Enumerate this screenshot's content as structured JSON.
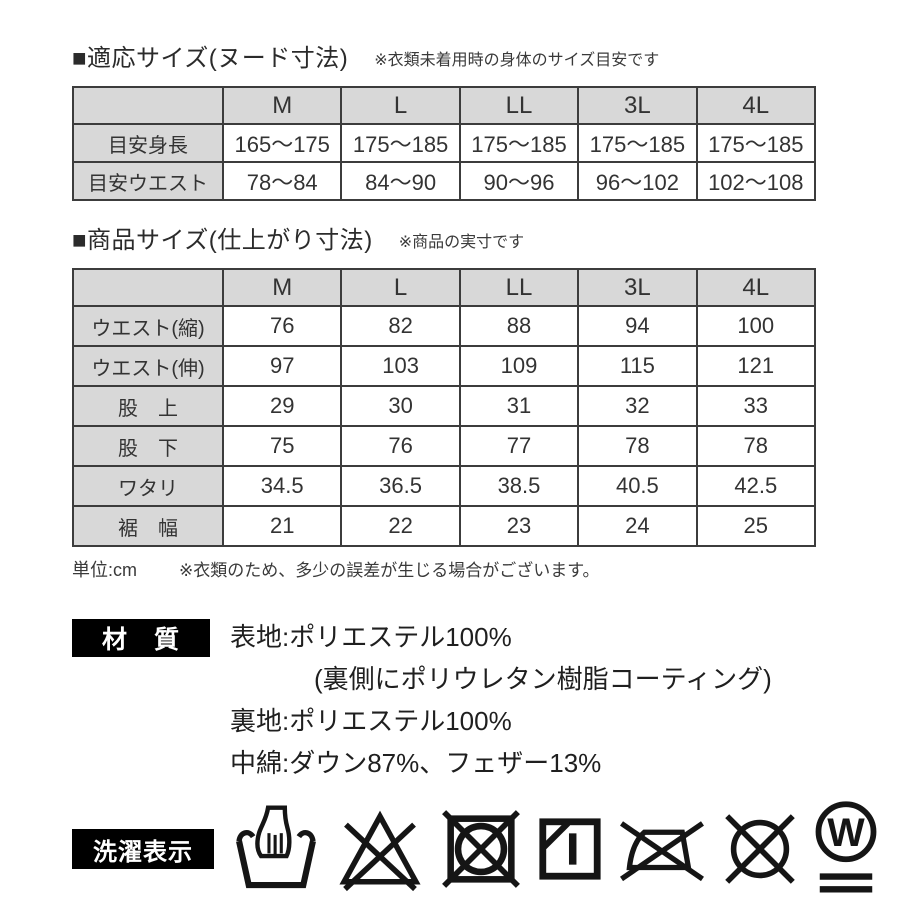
{
  "sections": {
    "nude_size": {
      "title": "■適応サイズ(ヌード寸法)",
      "note": "※衣類未着用時の身体のサイズ目安です",
      "table": {
        "columns": [
          "",
          "M",
          "L",
          "LL",
          "3L",
          "4L"
        ],
        "rows": [
          {
            "label": "目安身長",
            "values": [
              "165〜175",
              "175〜185",
              "175〜185",
              "175〜185",
              "175〜185"
            ]
          },
          {
            "label": "目安ウエスト",
            "values": [
              "78〜84",
              "84〜90",
              "90〜96",
              "96〜102",
              "102〜108"
            ]
          }
        ]
      }
    },
    "product_size": {
      "title": "■商品サイズ(仕上がり寸法)",
      "note": "※商品の実寸です",
      "table": {
        "columns": [
          "",
          "M",
          "L",
          "LL",
          "3L",
          "4L"
        ],
        "rows": [
          {
            "label": "ウエスト(縮)",
            "values": [
              "76",
              "82",
              "88",
              "94",
              "100"
            ]
          },
          {
            "label": "ウエスト(伸)",
            "values": [
              "97",
              "103",
              "109",
              "115",
              "121"
            ]
          },
          {
            "label": "股　上",
            "values": [
              "29",
              "30",
              "31",
              "32",
              "33"
            ]
          },
          {
            "label": "股　下",
            "values": [
              "75",
              "76",
              "77",
              "78",
              "78"
            ]
          },
          {
            "label": "ワタリ",
            "values": [
              "34.5",
              "36.5",
              "38.5",
              "40.5",
              "42.5"
            ]
          },
          {
            "label": "裾　幅",
            "values": [
              "21",
              "22",
              "23",
              "24",
              "25"
            ]
          }
        ]
      },
      "unit_label": "単位:cm",
      "tolerance_note": "※衣類のため、多少の誤差が生じる場合がございます。"
    },
    "materials": {
      "label": "材　質",
      "lines": [
        {
          "text": "表地:ポリエステル100%",
          "indent": false
        },
        {
          "text": "(裏側にポリウレタン樹脂コーティング)",
          "indent": true
        },
        {
          "text": "裏地:ポリエステル100%",
          "indent": false
        },
        {
          "text": "中綿:ダウン87%、フェザー13%",
          "indent": false
        }
      ]
    },
    "care": {
      "label": "洗濯表示",
      "wet_clean_letter": "W",
      "symbols": [
        "hand-wash-icon",
        "no-bleach-icon",
        "no-tumble-dry-icon",
        "line-dry-in-shade-icon",
        "no-iron-icon",
        "no-dry-clean-icon",
        "wet-clean-very-gentle-icon"
      ]
    }
  },
  "colors": {
    "table_header_bg": "#d8d8d8",
    "table_border": "#3c3c3c",
    "tag_bg": "#000000",
    "tag_text": "#ffffff",
    "icon_ink": "#151515"
  }
}
